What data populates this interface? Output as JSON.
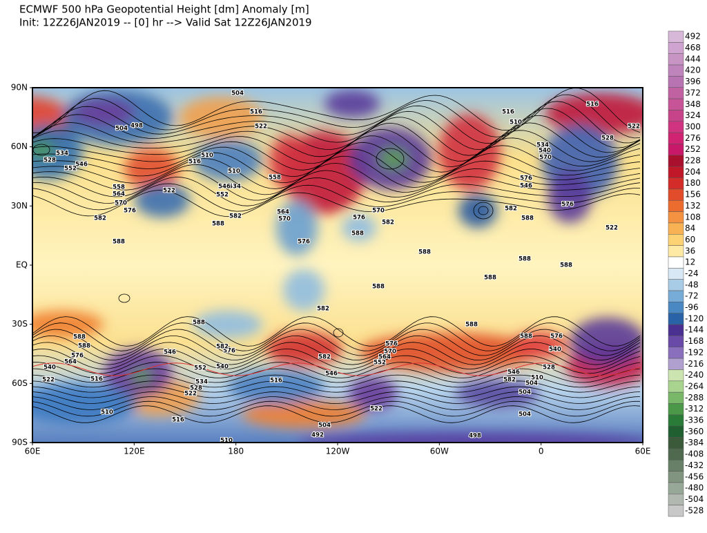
{
  "header": {
    "title": "ECMWF 500 hPa Geopotential Height [dm] Anomaly [m]",
    "subtitle": "Init: 12Z26JAN2019 -- [0] hr --> Valid Sat 12Z26JAN2019"
  },
  "map": {
    "lat_labels": [
      "90N",
      "60N",
      "30N",
      "EQ",
      "30S",
      "60S",
      "90S"
    ],
    "lon_labels": [
      "60E",
      "120E",
      "180",
      "120W",
      "60W",
      "0",
      "60E"
    ],
    "contour_labels": [
      504,
      516,
      522,
      504,
      498,
      510,
      516,
      510,
      522,
      558,
      534,
      546,
      552,
      558,
      564,
      570,
      576,
      582,
      588,
      582,
      564,
      570,
      576,
      588,
      582,
      576,
      570,
      588,
      588,
      588,
      588,
      588,
      588,
      582,
      588,
      588,
      588,
      588,
      576,
      564,
      540,
      522,
      516,
      546,
      552,
      534,
      528,
      522,
      540,
      576,
      582,
      582,
      546,
      516,
      576,
      570,
      564,
      552,
      546,
      582,
      588,
      576,
      540,
      528,
      510,
      504,
      504,
      504,
      510,
      516,
      504,
      492,
      498,
      510,
      522,
      516,
      510,
      516,
      528,
      522,
      534,
      540,
      570,
      576,
      546,
      576,
      582,
      588,
      522,
      528,
      534,
      546,
      552
    ]
  },
  "colorbar": {
    "levels": [
      492,
      468,
      444,
      420,
      396,
      372,
      348,
      324,
      300,
      276,
      252,
      228,
      204,
      180,
      156,
      132,
      108,
      84,
      60,
      36,
      12,
      -24,
      -48,
      -72,
      -96,
      -120,
      -144,
      -168,
      -192,
      -216,
      -240,
      -264,
      -288,
      -312,
      -336,
      -360,
      -384,
      -408,
      -432,
      -456,
      -480,
      -504,
      -528
    ],
    "colors": [
      "#d8b8d8",
      "#d0a4d0",
      "#c894c4",
      "#c084bc",
      "#b874b2",
      "#c062a2",
      "#c85498",
      "#c8448a",
      "#d03480",
      "#d02472",
      "#c8186a",
      "#a8102e",
      "#c01828",
      "#d42c28",
      "#e24c2a",
      "#ec6c30",
      "#f49242",
      "#f8b254",
      "#fcd274",
      "#feeaa4",
      "#ffffff",
      "#d8e8f4",
      "#a8cce6",
      "#78acd8",
      "#4a88c4",
      "#2a62a8",
      "#4a3090",
      "#6a4aa8",
      "#8a70bc",
      "#b0a0d0",
      "#cce4b0",
      "#a8d490",
      "#78b868",
      "#4a9848",
      "#2a7a38",
      "#206030",
      "#3a5a3a",
      "#506a50",
      "#688068",
      "#809480",
      "#98a898",
      "#b0b8b0",
      "#c8c8c8"
    ]
  }
}
